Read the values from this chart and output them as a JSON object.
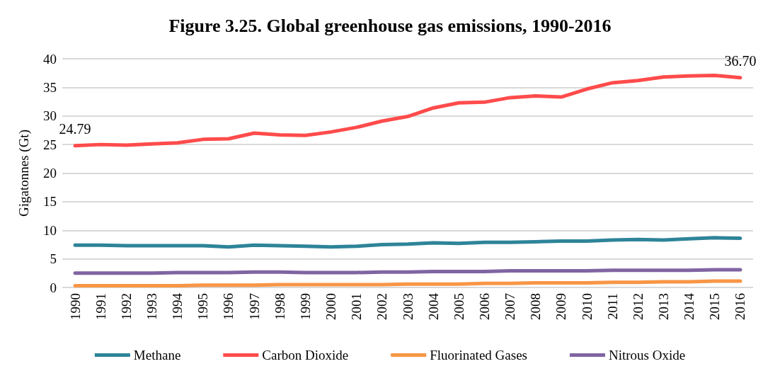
{
  "chart_data": {
    "type": "line",
    "title": "Figure 3.25. Global greenhouse gas emissions, 1990-2016",
    "ylabel": "Gigatonnes (Gt)",
    "categories": [
      "1990",
      "1991",
      "1992",
      "1993",
      "1994",
      "1995",
      "1996",
      "1997",
      "1998",
      "1999",
      "2000",
      "2001",
      "2002",
      "2003",
      "2004",
      "2005",
      "2006",
      "2007",
      "2008",
      "2009",
      "2010",
      "2011",
      "2012",
      "2013",
      "2014",
      "2015",
      "2016"
    ],
    "series": [
      {
        "name": "Methane",
        "color": "#2e8499",
        "values": [
          7.4,
          7.4,
          7.3,
          7.3,
          7.3,
          7.3,
          7.1,
          7.4,
          7.3,
          7.2,
          7.1,
          7.2,
          7.5,
          7.6,
          7.8,
          7.7,
          7.9,
          7.9,
          8.0,
          8.1,
          8.1,
          8.3,
          8.4,
          8.3,
          8.5,
          8.7,
          8.6
        ]
      },
      {
        "name": "Carbon Dioxide",
        "color": "#ff4b4b",
        "values": [
          24.79,
          25.0,
          24.9,
          25.1,
          25.3,
          25.9,
          26.0,
          27.0,
          26.7,
          26.6,
          27.2,
          28.0,
          29.1,
          29.9,
          31.4,
          32.3,
          32.4,
          33.2,
          33.5,
          33.3,
          34.7,
          35.8,
          36.2,
          36.8,
          37.0,
          37.1,
          36.7
        ],
        "value_labels": [
          "24.79",
          null,
          null,
          null,
          null,
          null,
          null,
          null,
          null,
          null,
          null,
          null,
          null,
          null,
          null,
          null,
          null,
          null,
          null,
          null,
          null,
          null,
          null,
          null,
          null,
          null,
          "36.70"
        ]
      },
      {
        "name": "Fluorinated Gases",
        "color": "#f79646",
        "values": [
          0.3,
          0.3,
          0.3,
          0.3,
          0.3,
          0.4,
          0.4,
          0.4,
          0.5,
          0.5,
          0.5,
          0.5,
          0.5,
          0.6,
          0.6,
          0.6,
          0.7,
          0.7,
          0.8,
          0.8,
          0.8,
          0.9,
          0.9,
          1.0,
          1.0,
          1.1,
          1.1
        ]
      },
      {
        "name": "Nitrous Oxide",
        "color": "#8064a2",
        "values": [
          2.5,
          2.5,
          2.5,
          2.5,
          2.6,
          2.6,
          2.6,
          2.7,
          2.7,
          2.6,
          2.6,
          2.6,
          2.7,
          2.7,
          2.8,
          2.8,
          2.8,
          2.9,
          2.9,
          2.9,
          2.9,
          3.0,
          3.0,
          3.0,
          3.0,
          3.1,
          3.1
        ]
      }
    ],
    "ylim": [
      0,
      40
    ],
    "yticks": [
      0,
      5,
      10,
      15,
      20,
      25,
      30,
      35,
      40
    ],
    "grid": "y",
    "legend": "bottom",
    "marker": "none",
    "line_style": "solid"
  }
}
